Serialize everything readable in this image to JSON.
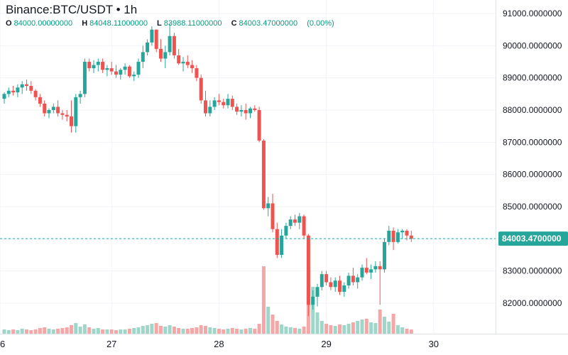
{
  "header": {
    "title": "Binance:BTC/USDT • 1h",
    "ohlc": [
      {
        "key": "O",
        "value": "84000.00000000"
      },
      {
        "key": "H",
        "value": "84048.11000000"
      },
      {
        "key": "L",
        "value": "83988.11000000"
      },
      {
        "key": "C",
        "value": "84003.47000000"
      }
    ],
    "change": "(0.00%)"
  },
  "colors": {
    "up": "#26a69a",
    "down": "#ef5350",
    "up_vol": "#9ed7c9",
    "down_vol": "#f5a6a6",
    "last_line": "#26a69a",
    "grid": "#f0f3fa"
  },
  "chart_data": {
    "type": "candlestick",
    "title": "Binance:BTC/USDT • 1h",
    "y_ticks": [
      "91000.0000000",
      "90000.0000000",
      "89000.0000000",
      "88000.0000000",
      "87000.0000000",
      "86000.0000000",
      "85000.0000000",
      "84000.0000000",
      "83000.0000000",
      "82000.0000000"
    ],
    "ylim": [
      81050,
      91420
    ],
    "x_ticks": [
      {
        "label": "6",
        "t": 0
      },
      {
        "label": "27",
        "t": 24
      },
      {
        "label": "28",
        "t": 48
      },
      {
        "label": "29",
        "t": 72
      },
      {
        "label": "30",
        "t": 96
      }
    ],
    "last_price": 84003.47,
    "last_price_label": "84003.4700000",
    "candles": [
      [
        0,
        88350,
        88550,
        88200,
        88500,
        0.06
      ],
      [
        1,
        88500,
        88700,
        88400,
        88600,
        0.05
      ],
      [
        2,
        88600,
        88750,
        88450,
        88550,
        0.06
      ],
      [
        3,
        88550,
        88800,
        88400,
        88700,
        0.05
      ],
      [
        4,
        88700,
        88900,
        88500,
        88800,
        0.07
      ],
      [
        5,
        88800,
        88950,
        88600,
        88750,
        0.06
      ],
      [
        6,
        88750,
        88900,
        88500,
        88600,
        0.05
      ],
      [
        7,
        88600,
        88650,
        88300,
        88400,
        0.06
      ],
      [
        8,
        88400,
        88500,
        88100,
        88200,
        0.08
      ],
      [
        9,
        88200,
        88300,
        87800,
        87900,
        0.09
      ],
      [
        10,
        87900,
        88050,
        87750,
        88000,
        0.07
      ],
      [
        11,
        88000,
        88200,
        87900,
        88100,
        0.06
      ],
      [
        12,
        88100,
        88300,
        87800,
        87900,
        0.07
      ],
      [
        13,
        87900,
        88000,
        87700,
        87850,
        0.08
      ],
      [
        14,
        87850,
        88000,
        87650,
        87800,
        0.09
      ],
      [
        15,
        87800,
        88300,
        87300,
        87500,
        0.12
      ],
      [
        16,
        87500,
        88500,
        87300,
        88400,
        0.15
      ],
      [
        17,
        88400,
        88600,
        88200,
        88500,
        0.1
      ],
      [
        18,
        88500,
        89600,
        88400,
        89500,
        0.13
      ],
      [
        19,
        89500,
        89600,
        89200,
        89300,
        0.09
      ],
      [
        20,
        89300,
        89550,
        89150,
        89400,
        0.07
      ],
      [
        21,
        89400,
        89600,
        89200,
        89500,
        0.08
      ],
      [
        22,
        89500,
        89600,
        89150,
        89250,
        0.06
      ],
      [
        23,
        89250,
        89400,
        89050,
        89300,
        0.06
      ],
      [
        24,
        89300,
        89500,
        89100,
        89200,
        0.06
      ],
      [
        25,
        89200,
        89400,
        89000,
        89100,
        0.05
      ],
      [
        26,
        89100,
        89300,
        88950,
        89250,
        0.06
      ],
      [
        27,
        89250,
        89450,
        89100,
        89350,
        0.06
      ],
      [
        28,
        89350,
        89400,
        89000,
        89050,
        0.07
      ],
      [
        29,
        89050,
        89200,
        88900,
        89100,
        0.08
      ],
      [
        30,
        89100,
        89600,
        89000,
        89500,
        0.09
      ],
      [
        31,
        89500,
        90000,
        89300,
        89800,
        0.11
      ],
      [
        32,
        89800,
        90200,
        89700,
        90100,
        0.12
      ],
      [
        33,
        90100,
        90600,
        90000,
        90500,
        0.14
      ],
      [
        34,
        90500,
        90500,
        89800,
        89900,
        0.15
      ],
      [
        35,
        89900,
        90200,
        89500,
        89600,
        0.11
      ],
      [
        36,
        89600,
        90000,
        89300,
        89800,
        0.1
      ],
      [
        37,
        89800,
        90700,
        89700,
        90300,
        0.12
      ],
      [
        38,
        90300,
        90400,
        89600,
        89700,
        0.1
      ],
      [
        39,
        89700,
        89900,
        89400,
        89450,
        0.08
      ],
      [
        40,
        89450,
        89650,
        89200,
        89500,
        0.07
      ],
      [
        41,
        89500,
        89700,
        89300,
        89400,
        0.07
      ],
      [
        42,
        89400,
        89550,
        89150,
        89300,
        0.08
      ],
      [
        43,
        89300,
        89400,
        88900,
        89000,
        0.09
      ],
      [
        44,
        89000,
        89100,
        88200,
        88300,
        0.12
      ],
      [
        45,
        88300,
        88600,
        87800,
        87900,
        0.11
      ],
      [
        46,
        87900,
        88300,
        87800,
        88100,
        0.09
      ],
      [
        47,
        88100,
        88400,
        88000,
        88300,
        0.08
      ],
      [
        48,
        88300,
        88500,
        88150,
        88250,
        0.07
      ],
      [
        49,
        88250,
        88350,
        88050,
        88150,
        0.06
      ],
      [
        50,
        88150,
        88500,
        88050,
        88350,
        0.07
      ],
      [
        51,
        88350,
        88450,
        88000,
        88100,
        0.08
      ],
      [
        52,
        88100,
        88200,
        87850,
        87950,
        0.07
      ],
      [
        53,
        87950,
        88150,
        87800,
        88000,
        0.06
      ],
      [
        54,
        88000,
        88200,
        87700,
        87900,
        0.07
      ],
      [
        55,
        87900,
        88100,
        87750,
        88050,
        0.08
      ],
      [
        56,
        88050,
        88150,
        87950,
        88000,
        0.07
      ],
      [
        57,
        88000,
        88100,
        87000,
        87050,
        0.14
      ],
      [
        58,
        87050,
        87100,
        84900,
        84950,
        0.95
      ],
      [
        59,
        84950,
        85300,
        84700,
        85100,
        0.38
      ],
      [
        60,
        85100,
        85400,
        84200,
        84300,
        0.27
      ],
      [
        61,
        84300,
        84500,
        83400,
        83500,
        0.18
      ],
      [
        62,
        83500,
        84300,
        83400,
        84100,
        0.13
      ],
      [
        63,
        84100,
        84500,
        84000,
        84400,
        0.1
      ],
      [
        64,
        84400,
        84700,
        84300,
        84600,
        0.09
      ],
      [
        65,
        84600,
        84750,
        84400,
        84500,
        0.08
      ],
      [
        66,
        84500,
        84800,
        84300,
        84700,
        0.07
      ],
      [
        67,
        84700,
        84750,
        84000,
        84100,
        0.1
      ],
      [
        68,
        84100,
        84150,
        81600,
        81950,
        0.92
      ],
      [
        69,
        81950,
        82400,
        81800,
        82200,
        0.66
      ],
      [
        70,
        82200,
        82600,
        81900,
        82500,
        0.3
      ],
      [
        71,
        82500,
        83000,
        82400,
        82900,
        0.18
      ],
      [
        72,
        82900,
        83000,
        82550,
        82650,
        0.14
      ],
      [
        73,
        82650,
        82800,
        82400,
        82500,
        0.12
      ],
      [
        74,
        82500,
        82800,
        82350,
        82700,
        0.11
      ],
      [
        75,
        82700,
        82850,
        82250,
        82350,
        0.13
      ],
      [
        76,
        82350,
        82650,
        82200,
        82550,
        0.12
      ],
      [
        77,
        82550,
        82950,
        82450,
        82850,
        0.14
      ],
      [
        78,
        82850,
        83100,
        82550,
        82650,
        0.16
      ],
      [
        79,
        82650,
        82900,
        82450,
        82800,
        0.18
      ],
      [
        80,
        82800,
        83200,
        82700,
        83100,
        0.2
      ],
      [
        81,
        83100,
        83400,
        82900,
        82950,
        0.21
      ],
      [
        82,
        82950,
        83200,
        82750,
        83050,
        0.16
      ],
      [
        83,
        83050,
        83300,
        82950,
        83150,
        0.15
      ],
      [
        84,
        83150,
        83300,
        81950,
        83050,
        0.34
      ],
      [
        85,
        83050,
        84000,
        82950,
        83900,
        0.24
      ],
      [
        86,
        83900,
        84400,
        83800,
        84250,
        0.17
      ],
      [
        87,
        84250,
        84350,
        83650,
        83900,
        0.28
      ],
      [
        88,
        83900,
        84300,
        83850,
        84200,
        0.12
      ],
      [
        89,
        84200,
        84300,
        84000,
        84250,
        0.09
      ],
      [
        90,
        84250,
        84300,
        83950,
        84100,
        0.07
      ],
      [
        91,
        84100,
        84250,
        83900,
        84000,
        0.06
      ]
    ]
  }
}
